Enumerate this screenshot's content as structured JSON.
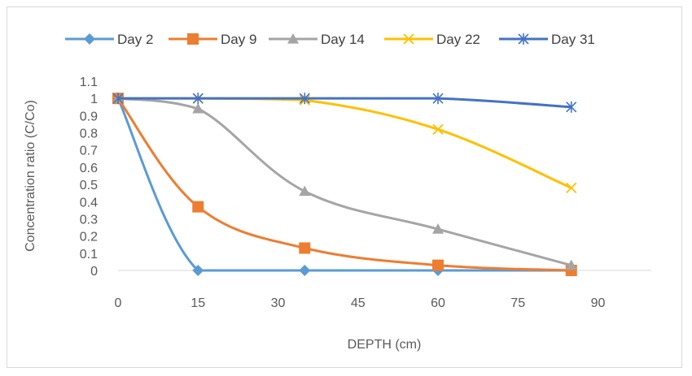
{
  "chart_data": {
    "type": "line",
    "smooth": true,
    "xlabel": "DEPTH (cm)",
    "ylabel": "Concentration ratio (C/Co)",
    "xlim": [
      0,
      100
    ],
    "ylim": [
      0,
      1.1
    ],
    "x_ticks": [
      "0",
      "15",
      "30",
      "45",
      "60",
      "75",
      "90"
    ],
    "y_ticks": [
      "0",
      "0.1",
      "0.2",
      "0.3",
      "0.4",
      "0.5",
      "0.6",
      "0.7",
      "0.8",
      "0.9",
      "1",
      "1.1"
    ],
    "grid": false,
    "legend_position": "top",
    "series": [
      {
        "name": "Day 2",
        "color": "#5b9bd5",
        "marker": "diamond",
        "x": [
          0,
          15,
          35,
          60,
          85
        ],
        "y": [
          1,
          0,
          0,
          0,
          0
        ]
      },
      {
        "name": "Day 9",
        "color": "#ed7d31",
        "marker": "square",
        "x": [
          0,
          15,
          35,
          60,
          85
        ],
        "y": [
          1,
          0.37,
          0.13,
          0.03,
          0
        ]
      },
      {
        "name": "Day 14",
        "color": "#a5a5a5",
        "marker": "triangle",
        "x": [
          0,
          15,
          35,
          60,
          85
        ],
        "y": [
          1,
          0.94,
          0.46,
          0.24,
          0.03
        ]
      },
      {
        "name": "Day 22",
        "color": "#ffc000",
        "marker": "x",
        "x": [
          0,
          15,
          35,
          60,
          85
        ],
        "y": [
          1,
          1,
          0.99,
          0.82,
          0.48
        ]
      },
      {
        "name": "Day 31",
        "color": "#4472c4",
        "marker": "star",
        "x": [
          0,
          15,
          35,
          60,
          85
        ],
        "y": [
          1,
          1,
          1,
          1,
          0.95
        ]
      }
    ]
  }
}
